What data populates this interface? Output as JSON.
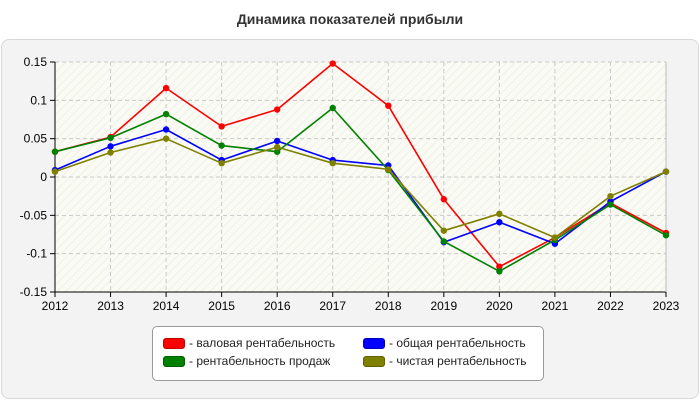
{
  "chart_data": {
    "type": "line",
    "title": "Динамика показателей прибыли",
    "xlabel": "",
    "ylabel": "",
    "x": [
      "2012",
      "2013",
      "2014",
      "2015",
      "2016",
      "2017",
      "2018",
      "2019",
      "2020",
      "2021",
      "2022",
      "2023"
    ],
    "ylim": [
      -0.15,
      0.15
    ],
    "yticks": [
      0.15,
      0.1,
      0.05,
      0,
      -0.05,
      -0.1,
      -0.15
    ],
    "ytick_labels": [
      "0.15",
      "0.1",
      "0.05",
      "0",
      "-0.05",
      "-0.1",
      "-0.15"
    ],
    "grid": true,
    "legend_position": "bottom-center",
    "series": [
      {
        "name": "- валовая рентабельность",
        "color": "#ff0000",
        "values": [
          0.033,
          0.052,
          0.116,
          0.066,
          0.088,
          0.148,
          0.093,
          -0.029,
          -0.117,
          -0.079,
          -0.034,
          -0.073
        ]
      },
      {
        "name": "- общая рентабельность",
        "color": "#0000ff",
        "values": [
          0.009,
          0.04,
          0.062,
          0.022,
          0.047,
          0.022,
          0.015,
          -0.085,
          -0.059,
          -0.087,
          -0.032,
          0.007
        ]
      },
      {
        "name": "- рентабельность продаж",
        "color": "#008000",
        "values": [
          0.033,
          0.051,
          0.082,
          0.041,
          0.033,
          0.09,
          0.009,
          -0.084,
          -0.123,
          -0.082,
          -0.036,
          -0.076
        ]
      },
      {
        "name": "- чистая рентабельность",
        "color": "#808000",
        "values": [
          0.007,
          0.032,
          0.05,
          0.018,
          0.039,
          0.018,
          0.01,
          -0.07,
          -0.048,
          -0.079,
          -0.025,
          0.007
        ]
      }
    ]
  }
}
